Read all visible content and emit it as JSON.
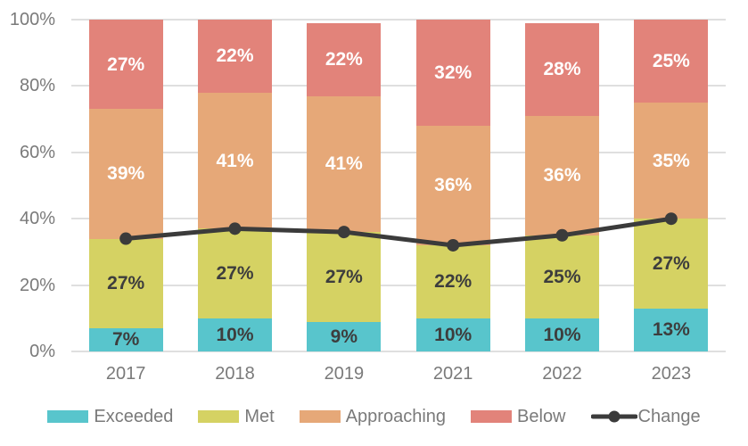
{
  "chart_data": {
    "type": "bar",
    "subtype": "100-percent-stacked-column-with-line-overlay",
    "title": "",
    "xlabel": "",
    "ylabel": "",
    "categories": [
      "2017",
      "2018",
      "2019",
      "2021",
      "2022",
      "2023"
    ],
    "series": [
      {
        "name": "Exceeded",
        "color": "#58C5CC",
        "label_color": "#3D3D3D",
        "values": [
          7,
          10,
          9,
          10,
          10,
          13
        ],
        "labels": [
          "7%",
          "10%",
          "9%",
          "10%",
          "10%",
          "13%"
        ]
      },
      {
        "name": "Met",
        "color": "#D5D263",
        "label_color": "#3D3D3D",
        "values": [
          27,
          27,
          27,
          22,
          25,
          27
        ],
        "labels": [
          "27%",
          "27%",
          "27%",
          "22%",
          "25%",
          "27%"
        ]
      },
      {
        "name": "Approaching",
        "color": "#E6A878",
        "label_color": "#FFFFFF",
        "values": [
          39,
          41,
          41,
          36,
          36,
          35
        ],
        "labels": [
          "39%",
          "41%",
          "41%",
          "36%",
          "36%",
          "35%"
        ]
      },
      {
        "name": "Below",
        "color": "#E2837A",
        "label_color": "#FFFFFF",
        "values": [
          27,
          22,
          22,
          32,
          28,
          25
        ],
        "labels": [
          "27%",
          "22%",
          "22%",
          "32%",
          "28%",
          "25%"
        ]
      }
    ],
    "line_series": {
      "name": "Change",
      "color": "#3B3B3B",
      "values": [
        34,
        37,
        36,
        32,
        35,
        40
      ]
    },
    "y_axis": {
      "min": 0,
      "max": 100,
      "tick_step": 20,
      "ticks": [
        "0%",
        "20%",
        "40%",
        "60%",
        "80%",
        "100%"
      ]
    },
    "grid": true,
    "legend_position": "bottom",
    "axis_text_color": "#7A7A7A",
    "gridline_color": "#DFDFDF"
  }
}
